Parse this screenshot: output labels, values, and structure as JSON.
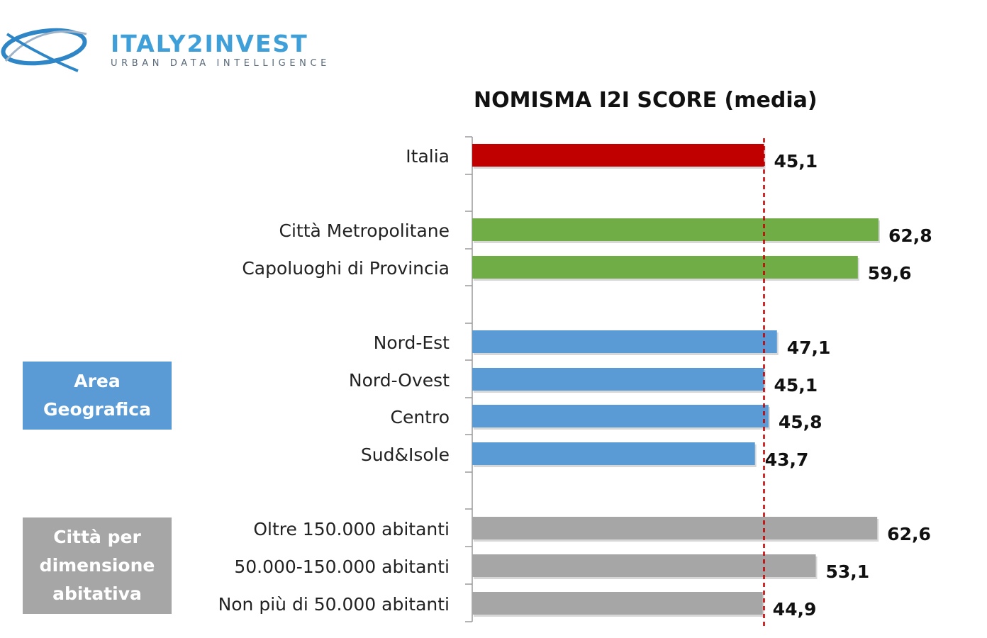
{
  "logo": {
    "name": "ITALY2INVEST",
    "tagline": "URBAN DATA INTELLIGENCE",
    "colors": {
      "primary": "#3f9fd8",
      "text": "#5a6a7a"
    }
  },
  "groups": [
    {
      "label": "Area\nGeografica",
      "color": "#5b9bd5"
    },
    {
      "label": "Città per\ndimensione\nabitativa",
      "color": "#a6a6a6"
    }
  ],
  "chart_data": {
    "type": "bar",
    "orientation": "horizontal",
    "title": "NOMISMA I2I SCORE (media)",
    "categories": [
      "Italia",
      "Città Metropolitane",
      "Capoluoghi di Provincia",
      "Nord-Est",
      "Nord-Ovest",
      "Centro",
      "Sud&Isole",
      "Oltre 150.000 abitanti",
      "50.000-150.000 abitanti",
      "Non più di 50.000 abitanti"
    ],
    "values": [
      45.1,
      62.8,
      59.6,
      47.1,
      45.1,
      45.8,
      43.7,
      62.6,
      53.1,
      44.9
    ],
    "value_labels": [
      "45,1",
      "62,8",
      "59,6",
      "47,1",
      "45,1",
      "45,8",
      "43,7",
      "62,6",
      "53,1",
      "44,9"
    ],
    "colors": [
      "#c00000",
      "#70ad47",
      "#70ad47",
      "#5b9bd5",
      "#5b9bd5",
      "#5b9bd5",
      "#5b9bd5",
      "#a6a6a6",
      "#a6a6a6",
      "#a6a6a6"
    ],
    "reference_line": {
      "value": 45.1,
      "style": "dashed",
      "color": "#c00000"
    },
    "xlim": [
      0,
      62.8
    ],
    "grid": false
  }
}
